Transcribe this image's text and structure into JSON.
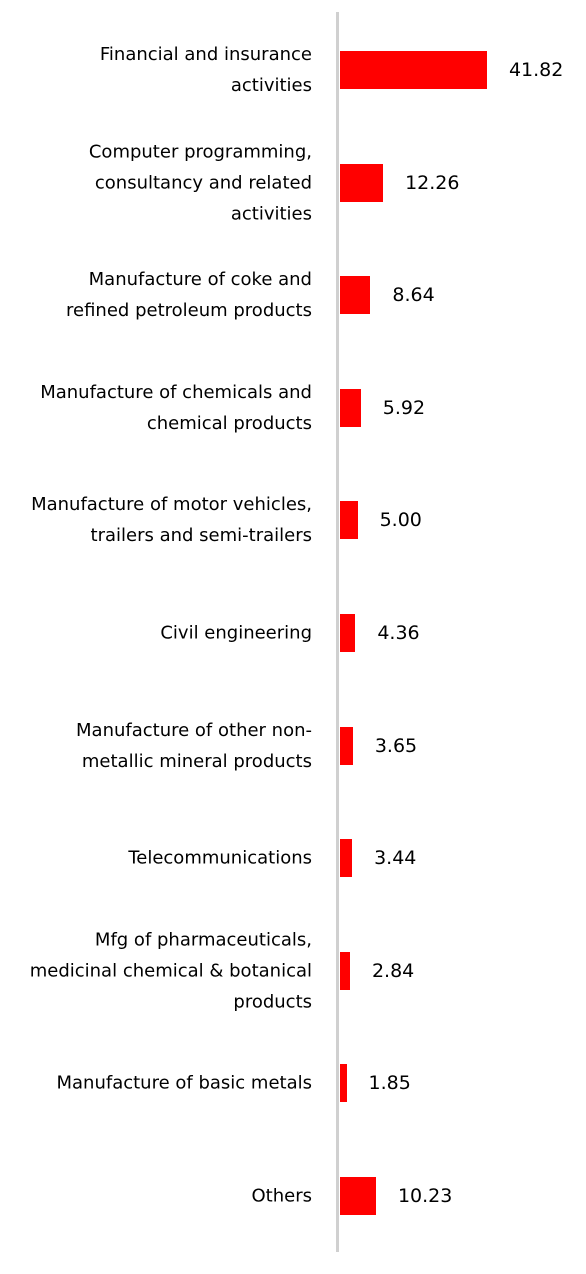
{
  "chart_data": {
    "type": "hbar",
    "categories": [
      "Financial and insurance activities",
      "Computer programming, consultancy and related activities",
      "Manufacture of coke and refined petroleum products",
      "Manufacture of chemicals and chemical products",
      "Manufacture of motor vehicles, trailers and semi-trailers",
      "Civil engineering",
      "Manufacture of other non-metallic mineral products",
      "Telecommunications",
      "Mfg of pharmaceuticals, medicinal chemical & botanical products",
      "Manufacture of basic metals",
      "Others"
    ],
    "values": [
      41.82,
      12.26,
      8.64,
      5.92,
      5.0,
      4.36,
      3.65,
      3.44,
      2.84,
      1.85,
      10.23
    ],
    "value_labels": [
      "41.82",
      "12.26",
      "8.64",
      "5.92",
      "5.00",
      "4.36",
      "3.65",
      "3.44",
      "2.84",
      "1.85",
      "10.23"
    ],
    "color": "#ff0000",
    "xlim": [
      0,
      70
    ]
  }
}
